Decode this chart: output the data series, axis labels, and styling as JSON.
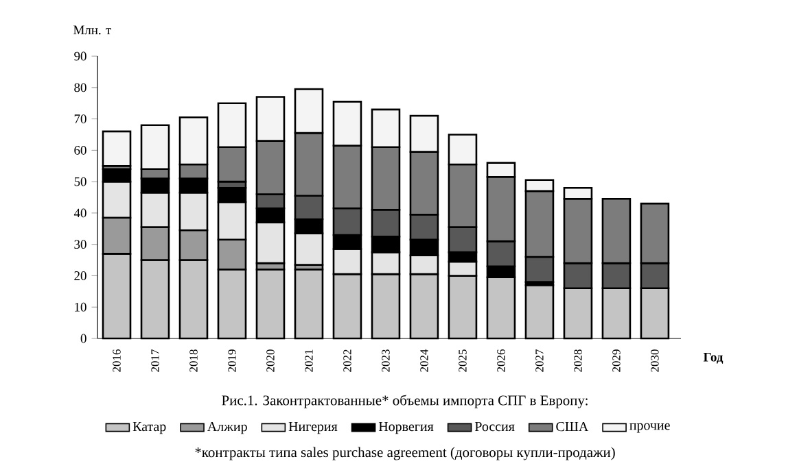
{
  "chart_data": {
    "type": "bar",
    "stacked": true,
    "categories": [
      "2016",
      "2017",
      "2018",
      "2019",
      "2020",
      "2021",
      "2022",
      "2023",
      "2024",
      "2025",
      "2026",
      "2027",
      "2028",
      "2029",
      "2030"
    ],
    "ylabel": "Млн. т",
    "xlabel": "Год",
    "ylim": [
      0,
      90
    ],
    "yticks": [
      0,
      10,
      20,
      30,
      40,
      50,
      60,
      70,
      80,
      90
    ],
    "grid": false,
    "legend": "bottom",
    "series": [
      {
        "name": "Катар",
        "color": "#c4c4c4",
        "values": [
          27,
          25,
          25,
          22,
          22,
          22,
          20.5,
          20.5,
          20.5,
          20,
          19.5,
          17,
          16,
          16,
          16
        ]
      },
      {
        "name": "Алжир",
        "color": "#9a9a9a",
        "values": [
          11.5,
          10.5,
          9.5,
          9.5,
          2,
          1.5,
          null,
          null,
          null,
          null,
          null,
          null,
          null,
          null,
          null
        ]
      },
      {
        "name": "Нигерия",
        "color": "#e4e4e4",
        "values": [
          11.5,
          11,
          12,
          12,
          13,
          10,
          8,
          7,
          6,
          4.5,
          null,
          null,
          null,
          null,
          null
        ]
      },
      {
        "name": "Норвегия",
        "color": "#000000",
        "values": [
          4,
          4.5,
          4.5,
          4.5,
          4.5,
          4.5,
          4.5,
          5,
          5,
          3,
          3.5,
          1,
          null,
          null,
          null
        ]
      },
      {
        "name": "Россия",
        "color": "#585858",
        "values": [
          null,
          null,
          null,
          2,
          4.5,
          7.5,
          8.5,
          8.5,
          8,
          8,
          8,
          8,
          8,
          8,
          8
        ]
      },
      {
        "name": "США",
        "color": "#7c7c7c",
        "values": [
          1,
          3,
          4.5,
          11,
          17,
          20,
          20,
          20,
          20,
          20,
          20.5,
          21,
          20.5,
          20.5,
          19
        ]
      },
      {
        "name": "прочие",
        "color": "#f4f4f4",
        "values": [
          11,
          14,
          15,
          14,
          14,
          14,
          14,
          12,
          11.5,
          9.5,
          4.5,
          3.5,
          3.5,
          null,
          null
        ]
      }
    ],
    "annotations": [
      "Рис.1. Законтрактованные* объемы импорта СПГ в Европу:",
      "*контракты типа sales purchase agreement (договоры купли-продажи)"
    ]
  }
}
